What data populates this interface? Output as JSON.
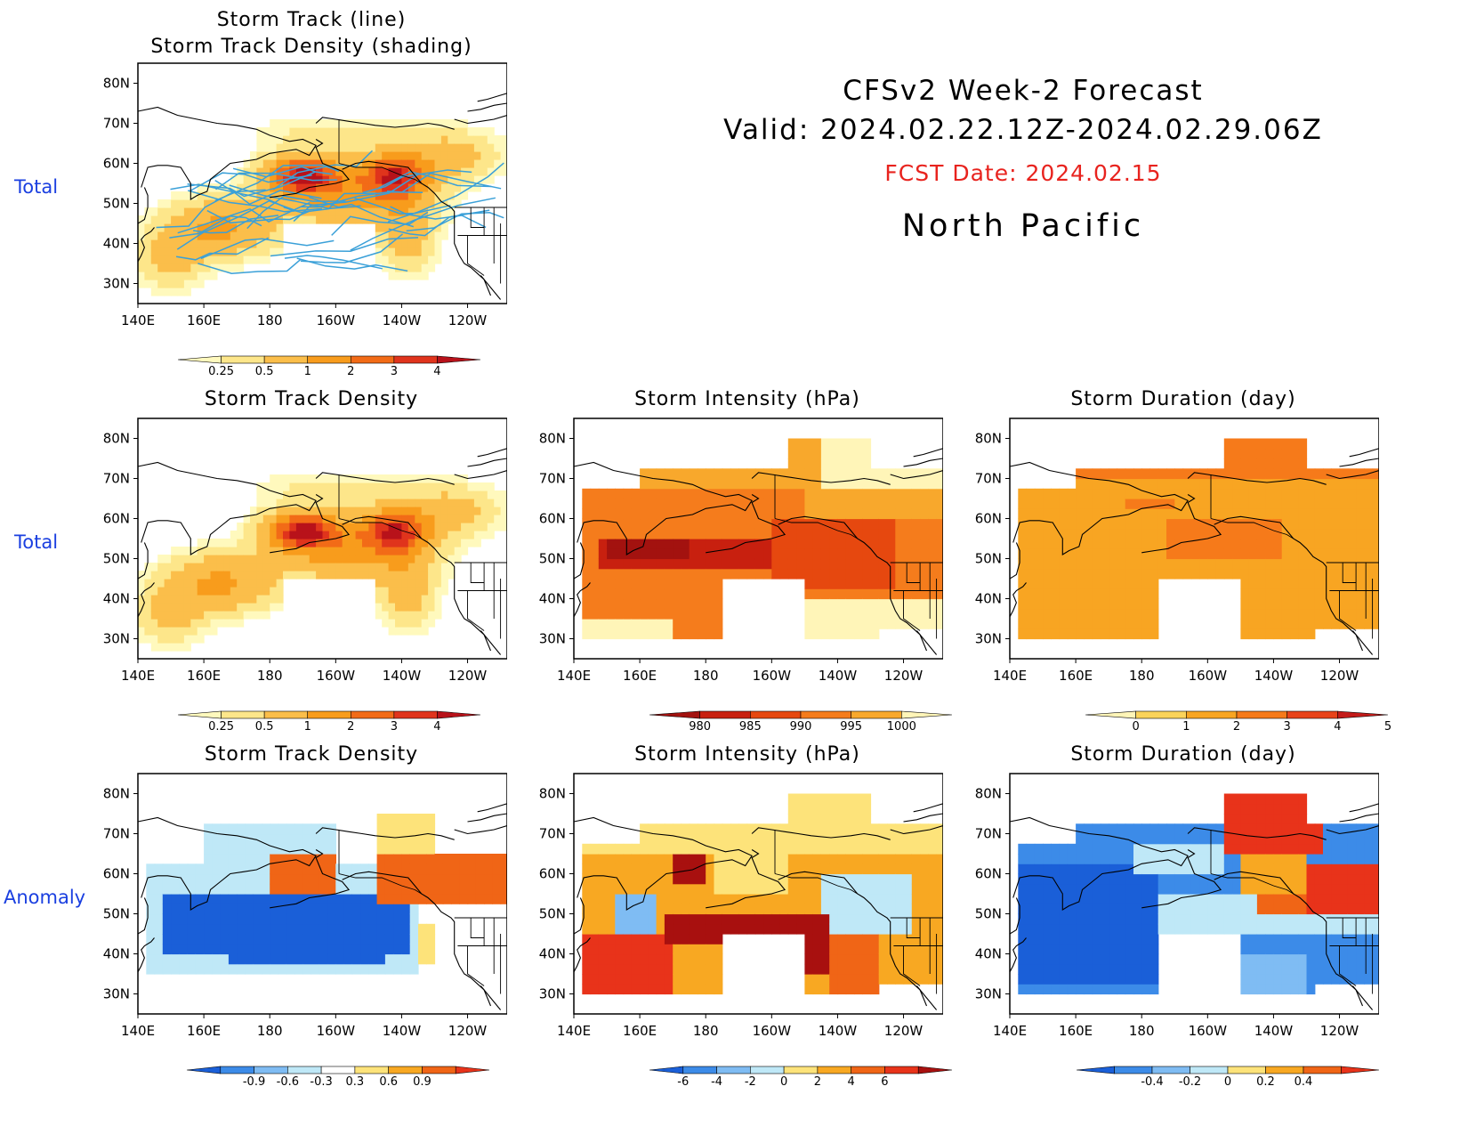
{
  "header": {
    "line1": "CFSv2 Week-2 Forecast",
    "line2": "Valid: 2024.02.22.12Z-2024.02.29.06Z",
    "fcst_date": "FCST Date: 2024.02.15",
    "region": "North Pacific"
  },
  "row_labels": {
    "row1": "Total",
    "row2": "Total",
    "row3": "Anomaly"
  },
  "axes": {
    "lat_labels": [
      "80N",
      "70N",
      "60N",
      "50N",
      "40N",
      "30N"
    ],
    "lon_labels": [
      "140E",
      "160E",
      "180",
      "160W",
      "140W",
      "120W"
    ]
  },
  "panels": {
    "track_line": {
      "title1": "Storm Track (line)",
      "title2": "Storm Track Density (shading)"
    },
    "density_total": {
      "title": "Storm Track Density"
    },
    "intensity_total": {
      "title": "Storm Intensity (hPa)"
    },
    "duration_total": {
      "title": "Storm Duration (day)"
    },
    "density_anom": {
      "title": "Storm Track Density"
    },
    "intensity_anom": {
      "title": "Storm Intensity (hPa)"
    },
    "duration_anom": {
      "title": "Storm Duration (day)"
    }
  },
  "colorbars": {
    "density": {
      "ticks": [
        "0.25",
        "0.5",
        "1",
        "2",
        "3",
        "4"
      ],
      "colors": [
        "#fff9bd",
        "#fde68a",
        "#fbbe4a",
        "#f89c1c",
        "#f26b17",
        "#e0341c",
        "#b8121a"
      ]
    },
    "intensity": {
      "ticks": [
        "980",
        "985",
        "990",
        "995",
        "1000"
      ],
      "colors": [
        "#a3120f",
        "#c8200f",
        "#e6480f",
        "#f57c1c",
        "#f8a82c",
        "#fff5b8"
      ]
    },
    "duration": {
      "ticks": [
        "0",
        "1",
        "2",
        "3",
        "4",
        "5"
      ],
      "colors": [
        "#fff5b8",
        "#fbd35a",
        "#f8a522",
        "#f67a1a",
        "#e8431a",
        "#c41b19"
      ]
    },
    "density_anom": {
      "ticks": [
        "-0.9",
        "-0.6",
        "-0.3",
        "0.3",
        "0.6",
        "0.9"
      ],
      "colors": [
        "#1a5fd8",
        "#3c8be8",
        "#7fbcf3",
        "#bfe8f7",
        "#ffffff",
        "#fde37a",
        "#f8a822",
        "#f06516",
        "#e8331a"
      ]
    },
    "intensity_anom": {
      "ticks": [
        "-6",
        "-4",
        "-2",
        "0",
        "2",
        "4",
        "6"
      ],
      "colors": [
        "#1a5fd8",
        "#3c8be8",
        "#7fbcf3",
        "#bfe8f7",
        "#fde37a",
        "#f8a822",
        "#f06516",
        "#e8331a",
        "#a8100f"
      ]
    },
    "duration_anom": {
      "ticks": [
        "-0.4",
        "-0.2",
        "0",
        "0.2",
        "0.4"
      ],
      "colors": [
        "#1a5fd8",
        "#3c8be8",
        "#7fbcf3",
        "#bfe8f7",
        "#fde37a",
        "#f8a822",
        "#f06516",
        "#e8331a"
      ]
    }
  },
  "colors": {
    "row_label": "#1a3fe0",
    "fcst_date": "#e8231e",
    "track_line": "#3aa0d8"
  }
}
